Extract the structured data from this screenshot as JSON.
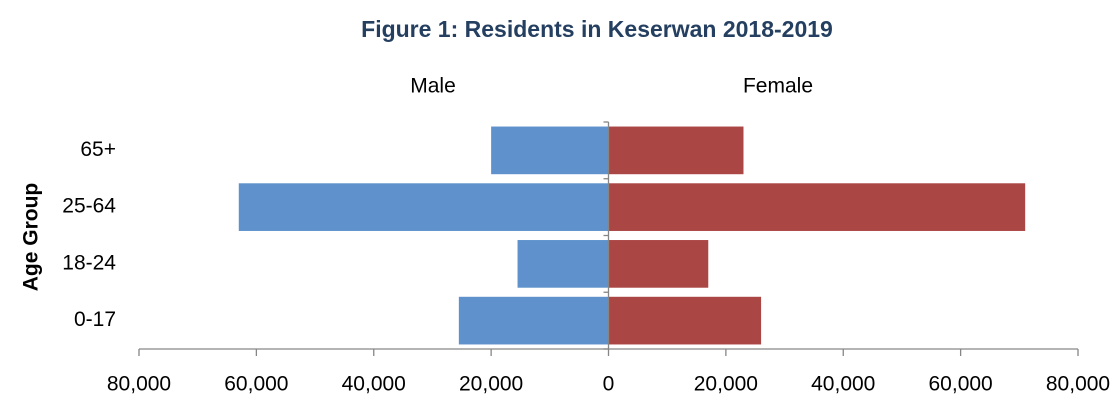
{
  "chart_data": {
    "type": "bar",
    "orientation": "horizontal",
    "stacked": true,
    "title": "Figure 1: Residents in Keserwan 2018-2019",
    "y_label": "Age Group",
    "categories": [
      "0-17",
      "18-24",
      "25-64",
      "65+"
    ],
    "series": [
      {
        "name": "Male",
        "color": "#5f92cc",
        "values": [
          -25500,
          -15500,
          -63000,
          -20000
        ]
      },
      {
        "name": "Female",
        "color": "#aa4643",
        "values": [
          26000,
          17000,
          71000,
          23000
        ]
      }
    ],
    "xlim": [
      -80000,
      80000
    ],
    "xticks": [
      {
        "value": -80000,
        "label": "80,000"
      },
      {
        "value": -60000,
        "label": "60,000"
      },
      {
        "value": -40000,
        "label": "40,000"
      },
      {
        "value": -20000,
        "label": "20,000"
      },
      0,
      {
        "value": 20000,
        "label": "20,000"
      },
      {
        "value": 40000,
        "label": "40,000"
      },
      {
        "value": 60000,
        "label": "60,000"
      },
      {
        "value": 80000,
        "label": "80,000"
      }
    ],
    "grid": false
  }
}
